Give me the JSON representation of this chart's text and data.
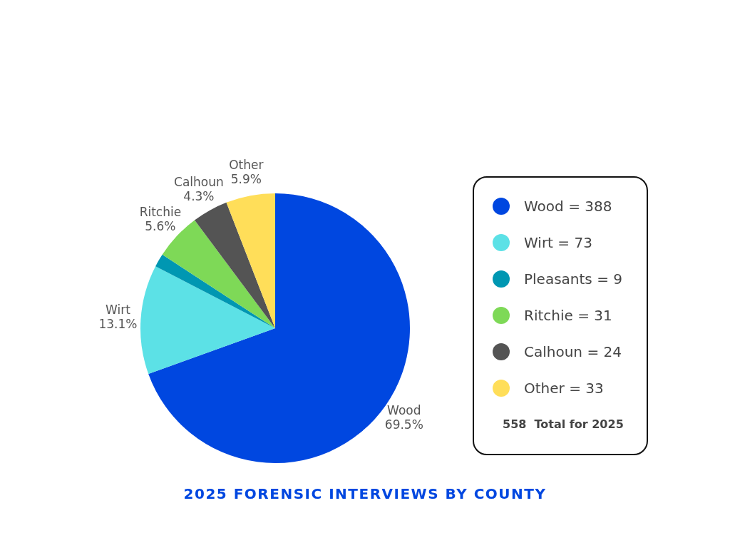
{
  "chart_data": {
    "type": "pie",
    "title": "2025 FORENSIC INTERVIEWS BY COUNTY",
    "categories": [
      "Wood",
      "Wirt",
      null,
      "Ritchie",
      "Calhoun",
      "Other"
    ],
    "values": [
      69.5,
      13.1,
      1.6,
      5.6,
      4.3,
      5.9
    ],
    "colors": [
      "#0047e0",
      "#5ce1e6",
      "#0097b2",
      "#7ed957",
      "#545454",
      "#ffde59"
    ],
    "value_labels": [
      "69.5%",
      "13.1%",
      null,
      "5.6%",
      "4.3%",
      "5.9%"
    ],
    "annotations": [
      "Wood = 388",
      "Wirt = 73",
      "Pleasants = 9",
      "Ritchie = 31",
      "Calhoun = 24",
      "Other = 33",
      "558  Total for 2025"
    ]
  }
}
